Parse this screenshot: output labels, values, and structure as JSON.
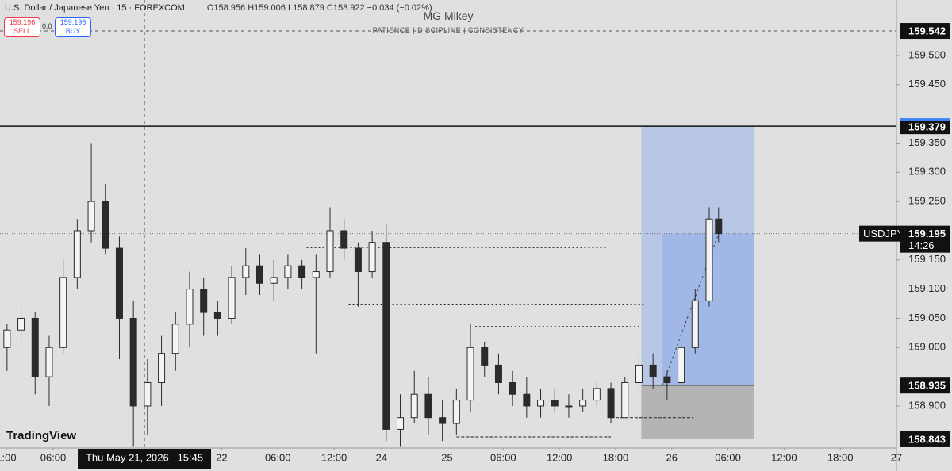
{
  "chart_data": {
    "type": "candlestick",
    "title": "U.S. Dollar / Japanese Yen · 15 · FOREXCOM",
    "ohlc_text": "O158.956 H159.006 L158.879 C158.922 −0.034 (−0.02%)",
    "sell": {
      "price": "159.196",
      "label": "SELL"
    },
    "buy": {
      "price": "159.196",
      "label": "BUY"
    },
    "spread": "0.0",
    "watermark": "MG Mikey",
    "watermark_sub": "PATIENCE | DISCIPLINE | CONSISTENCY",
    "brand": "TradingView",
    "x": [
      3,
      9,
      15,
      21,
      27,
      33,
      39,
      45,
      51,
      57,
      63,
      69,
      75,
      81,
      87,
      93,
      99,
      105,
      111,
      117,
      123,
      129,
      135,
      141,
      147,
      153,
      159,
      165,
      171,
      177,
      183,
      189,
      195,
      201,
      207,
      213,
      219,
      225,
      231,
      237,
      243,
      249,
      255,
      261,
      267,
      273,
      279,
      285,
      291,
      297,
      303,
      307
    ],
    "open": [
      159.0,
      159.03,
      159.05,
      158.95,
      159.0,
      159.12,
      159.2,
      159.25,
      159.17,
      159.05,
      158.9,
      158.94,
      158.99,
      159.04,
      159.1,
      159.06,
      159.05,
      159.12,
      159.14,
      159.11,
      159.12,
      159.14,
      159.12,
      159.13,
      159.2,
      159.17,
      159.13,
      159.18,
      158.86,
      158.88,
      158.92,
      158.88,
      158.87,
      158.91,
      159.0,
      158.97,
      158.94,
      158.92,
      158.9,
      158.91,
      158.9,
      158.9,
      158.91,
      158.93,
      158.88,
      158.94,
      158.97,
      158.95,
      158.94,
      159.0,
      159.08,
      159.22
    ],
    "high": [
      159.04,
      159.07,
      159.06,
      159.02,
      159.15,
      159.22,
      159.35,
      159.28,
      159.19,
      159.08,
      158.98,
      159.02,
      159.06,
      159.13,
      159.12,
      159.08,
      159.14,
      159.17,
      159.16,
      159.15,
      159.16,
      159.15,
      159.16,
      159.24,
      159.22,
      159.18,
      159.2,
      159.21,
      158.92,
      158.96,
      158.95,
      158.91,
      158.93,
      159.04,
      159.01,
      158.99,
      158.96,
      158.95,
      158.93,
      158.93,
      158.92,
      158.93,
      158.94,
      158.94,
      158.95,
      158.99,
      158.99,
      158.96,
      159.01,
      159.1,
      159.24,
      159.24
    ],
    "low": [
      158.96,
      159.01,
      158.92,
      158.9,
      158.99,
      159.1,
      159.18,
      159.16,
      158.98,
      158.83,
      158.85,
      158.9,
      158.96,
      159.0,
      159.02,
      159.02,
      159.04,
      159.09,
      159.09,
      159.08,
      159.1,
      159.1,
      158.99,
      159.12,
      159.15,
      159.07,
      159.12,
      158.84,
      158.83,
      158.87,
      158.85,
      158.84,
      158.85,
      158.89,
      158.95,
      158.92,
      158.9,
      158.88,
      158.88,
      158.89,
      158.88,
      158.89,
      158.9,
      158.87,
      158.88,
      158.92,
      158.93,
      158.91,
      158.93,
      158.99,
      159.07,
      159.18
    ],
    "close": [
      159.03,
      159.05,
      158.95,
      159.0,
      159.12,
      159.2,
      159.25,
      159.17,
      159.05,
      158.9,
      158.94,
      158.99,
      159.04,
      159.1,
      159.06,
      159.05,
      159.12,
      159.14,
      159.11,
      159.12,
      159.14,
      159.12,
      159.13,
      159.2,
      159.17,
      159.13,
      159.18,
      158.86,
      158.88,
      158.92,
      158.88,
      158.87,
      158.91,
      159.0,
      158.97,
      158.94,
      158.92,
      158.9,
      158.91,
      158.9,
      158.9,
      158.91,
      158.93,
      158.88,
      158.94,
      158.97,
      158.95,
      158.94,
      159.0,
      159.08,
      159.22,
      159.195
    ],
    "up_color": "#f4f4f4",
    "down_color": "#2b2b2b",
    "xlim": [
      0,
      383
    ],
    "ylim": [
      158.828,
      159.595
    ],
    "xticks": [
      {
        "value": 2.7,
        "label": "1:00"
      },
      {
        "value": 22.7,
        "label": "06:00"
      },
      {
        "value": 94.7,
        "label": "22"
      },
      {
        "value": 118.7,
        "label": "06:00"
      },
      {
        "value": 142.7,
        "label": "12:00"
      },
      {
        "value": 163,
        "label": "24"
      },
      {
        "value": 191,
        "label": "25"
      },
      {
        "value": 215,
        "label": "06:00"
      },
      {
        "value": 239,
        "label": "12:00"
      },
      {
        "value": 263,
        "label": "18:00"
      },
      {
        "value": 287,
        "label": "26"
      },
      {
        "value": 311,
        "label": "06:00"
      },
      {
        "value": 335,
        "label": "12:00"
      },
      {
        "value": 359,
        "label": "18:00"
      },
      {
        "value": 383,
        "label": "27"
      }
    ],
    "yticks": [
      {
        "value": 159.5,
        "label": "159.500"
      },
      {
        "value": 159.45,
        "label": "159.450"
      },
      {
        "value": 159.35,
        "label": "159.350"
      },
      {
        "value": 159.3,
        "label": "159.300"
      },
      {
        "value": 159.25,
        "label": "159.250"
      },
      {
        "value": 159.15,
        "label": "159.150"
      },
      {
        "value": 159.1,
        "label": "159.100"
      },
      {
        "value": 159.05,
        "label": "159.050"
      },
      {
        "value": 159.0,
        "label": "159.000"
      },
      {
        "value": 158.9,
        "label": "158.900"
      }
    ],
    "grid": false,
    "crosshair": {
      "x": 61.7,
      "x_label": "Thu May 21, 2026   15:45",
      "y": 159.542,
      "y_label": "159.542"
    },
    "hline": {
      "value": 159.379,
      "label": "159.379"
    },
    "position": {
      "target": 159.379,
      "target_label": "159.379",
      "entry": 158.935,
      "entry_label": "158.935",
      "stop": 158.843,
      "stop_label": "158.843",
      "x_range": [
        274,
        322
      ],
      "entry_x": 283
    },
    "last_price": {
      "symbol": "USDJPY",
      "value": 159.195,
      "label": "159.195",
      "countdown": "14:26"
    },
    "levels": [
      {
        "value": 159.171,
        "x_range": [
          131,
          259
        ]
      },
      {
        "value": 159.073,
        "x_range": [
          149,
          275
        ]
      },
      {
        "value": 159.036,
        "x_range": [
          203,
          274
        ]
      },
      {
        "value": 158.88,
        "x_range": [
          263,
          296
        ]
      },
      {
        "value": 158.847,
        "x_range": [
          195,
          261
        ]
      }
    ]
  }
}
